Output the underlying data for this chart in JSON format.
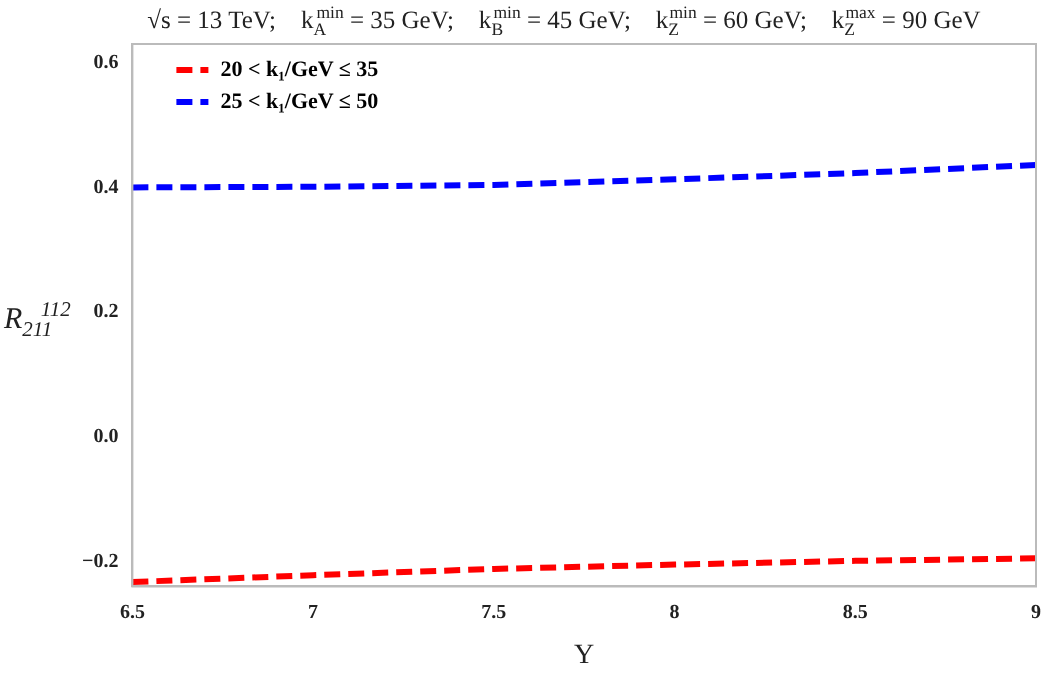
{
  "chart_data": {
    "type": "line",
    "title": "√s = 13 TeV;    k$_{A}$$^{min}$ = 35 GeV;    k$_{B}$$^{min}$ = 45 GeV;    k$_{Z}$$^{min}$ = 60 GeV;    k$_{Z}$$^{max}$ = 90 GeV",
    "xlabel": "Y",
    "ylabel": "R$_{211}$$^{112}$",
    "x": [
      6.5,
      7,
      7.5,
      8,
      8.5,
      9
    ],
    "series": [
      {
        "name": "20 < k₁/GeV ≤ 35",
        "color": "#ff0000",
        "line_style": "dashed",
        "values": [
          -0.233,
          -0.222,
          -0.212,
          -0.205,
          -0.199,
          -0.195
        ]
      },
      {
        "name": "25 < k₁/GeV ≤ 50",
        "color": "#0000ff",
        "line_style": "dashed",
        "values": [
          0.4,
          0.401,
          0.404,
          0.413,
          0.423,
          0.436
        ]
      }
    ],
    "xlim": [
      6.5,
      9
    ],
    "xticks": [
      6.5,
      7,
      7.5,
      8,
      8.5,
      9
    ],
    "ylim": [
      -0.24,
      0.63
    ],
    "yticks": [
      {
        "value": -0.2,
        "label": "−0.2"
      },
      {
        "value": 0,
        "label": "0.0"
      },
      {
        "value": 0.2,
        "label": "0.2"
      },
      {
        "value": 0.4,
        "label": "0.4"
      },
      {
        "value": 0.6,
        "label": "0.6"
      }
    ],
    "grid": false,
    "legend": "top left",
    "marker": "none"
  }
}
